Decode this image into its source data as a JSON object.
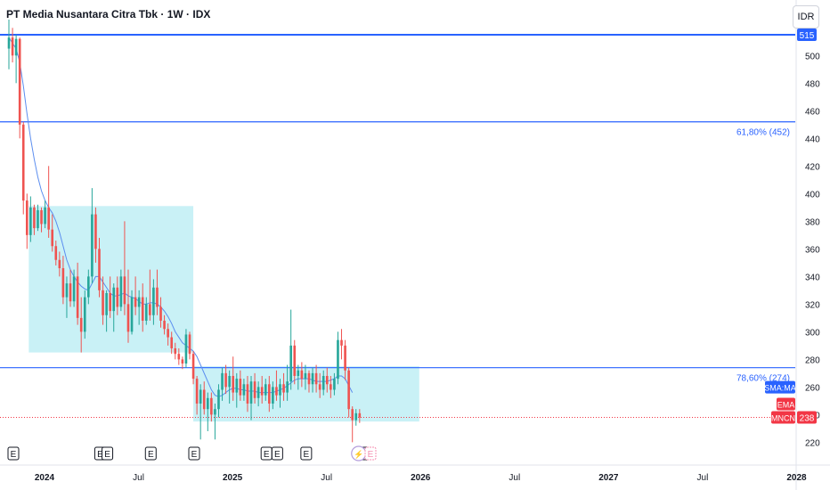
{
  "header": {
    "title": "PT Media Nusantara Citra Tbk · 1W · IDX",
    "currency": "IDR"
  },
  "chart_data": {
    "type": "candlestick",
    "ticker": "MNCN",
    "y_axis": {
      "ticks": [
        220,
        240,
        260,
        280,
        300,
        320,
        340,
        360,
        380,
        400,
        420,
        440,
        460,
        480,
        500
      ],
      "range": [
        208,
        526
      ]
    },
    "x_axis": {
      "tick_labels": [
        "2024",
        "Jul",
        "2025",
        "Jul",
        "2026",
        "Jul",
        "2027",
        "Jul",
        "2028"
      ],
      "tick_positions_week": [
        0,
        26,
        52,
        78,
        104,
        130,
        156,
        182,
        208
      ]
    },
    "horizontal_lines": [
      {
        "value": 515,
        "label": "515",
        "color": "#2962ff",
        "badge": true
      },
      {
        "value": 452,
        "label": "61,80% (452)",
        "color": "#2962ff"
      },
      {
        "value": 274,
        "label": "78,60% (274)",
        "color": "#2962ff"
      },
      {
        "value": 238,
        "label": "238",
        "color": "#f23645",
        "dotted": true
      }
    ],
    "rectangles": [
      {
        "x0_week": 5.5,
        "x1_week": 51,
        "y0": 285,
        "y1": 391,
        "color": "#b2ebf2"
      },
      {
        "x0_week": 51,
        "x1_week": 113.5,
        "y0": 235,
        "y1": 275,
        "color": "#b2ebf2"
      }
    ],
    "candles": [
      {
        "o": 505,
        "h": 526,
        "l": 490,
        "c": 513
      },
      {
        "o": 513,
        "h": 520,
        "l": 495,
        "c": 500
      },
      {
        "o": 500,
        "h": 515,
        "l": 480,
        "c": 512
      },
      {
        "o": 512,
        "h": 513,
        "l": 440,
        "c": 450
      },
      {
        "o": 450,
        "h": 452,
        "l": 385,
        "c": 395
      },
      {
        "o": 395,
        "h": 400,
        "l": 360,
        "c": 370
      },
      {
        "o": 370,
        "h": 398,
        "l": 365,
        "c": 390
      },
      {
        "o": 390,
        "h": 392,
        "l": 370,
        "c": 375
      },
      {
        "o": 375,
        "h": 392,
        "l": 373,
        "c": 388
      },
      {
        "o": 388,
        "h": 390,
        "l": 372,
        "c": 378
      },
      {
        "o": 378,
        "h": 395,
        "l": 375,
        "c": 390
      },
      {
        "o": 390,
        "h": 420,
        "l": 368,
        "c": 374
      },
      {
        "o": 374,
        "h": 385,
        "l": 358,
        "c": 362
      },
      {
        "o": 362,
        "h": 366,
        "l": 348,
        "c": 352
      },
      {
        "o": 352,
        "h": 358,
        "l": 340,
        "c": 346
      },
      {
        "o": 346,
        "h": 355,
        "l": 320,
        "c": 325
      },
      {
        "o": 325,
        "h": 340,
        "l": 310,
        "c": 335
      },
      {
        "o": 335,
        "h": 345,
        "l": 318,
        "c": 322
      },
      {
        "o": 322,
        "h": 345,
        "l": 318,
        "c": 340
      },
      {
        "o": 340,
        "h": 350,
        "l": 305,
        "c": 310
      },
      {
        "o": 310,
        "h": 325,
        "l": 285,
        "c": 300
      },
      {
        "o": 300,
        "h": 330,
        "l": 295,
        "c": 325
      },
      {
        "o": 325,
        "h": 345,
        "l": 320,
        "c": 340
      },
      {
        "o": 340,
        "h": 404,
        "l": 335,
        "c": 385
      },
      {
        "o": 385,
        "h": 390,
        "l": 350,
        "c": 360
      },
      {
        "o": 360,
        "h": 368,
        "l": 325,
        "c": 330
      },
      {
        "o": 330,
        "h": 340,
        "l": 305,
        "c": 312
      },
      {
        "o": 312,
        "h": 330,
        "l": 300,
        "c": 328
      },
      {
        "o": 328,
        "h": 340,
        "l": 310,
        "c": 315
      },
      {
        "o": 315,
        "h": 335,
        "l": 300,
        "c": 332
      },
      {
        "o": 332,
        "h": 340,
        "l": 312,
        "c": 318
      },
      {
        "o": 318,
        "h": 345,
        "l": 315,
        "c": 340
      },
      {
        "o": 340,
        "h": 380,
        "l": 312,
        "c": 320
      },
      {
        "o": 320,
        "h": 345,
        "l": 292,
        "c": 300
      },
      {
        "o": 300,
        "h": 330,
        "l": 298,
        "c": 325
      },
      {
        "o": 325,
        "h": 340,
        "l": 312,
        "c": 318
      },
      {
        "o": 318,
        "h": 330,
        "l": 305,
        "c": 325
      },
      {
        "o": 325,
        "h": 335,
        "l": 300,
        "c": 308
      },
      {
        "o": 308,
        "h": 325,
        "l": 305,
        "c": 320
      },
      {
        "o": 320,
        "h": 345,
        "l": 308,
        "c": 312
      },
      {
        "o": 312,
        "h": 338,
        "l": 305,
        "c": 332
      },
      {
        "o": 332,
        "h": 345,
        "l": 312,
        "c": 318
      },
      {
        "o": 318,
        "h": 325,
        "l": 303,
        "c": 308
      },
      {
        "o": 308,
        "h": 312,
        "l": 298,
        "c": 302
      },
      {
        "o": 302,
        "h": 306,
        "l": 290,
        "c": 296
      },
      {
        "o": 296,
        "h": 300,
        "l": 284,
        "c": 288
      },
      {
        "o": 288,
        "h": 292,
        "l": 280,
        "c": 284
      },
      {
        "o": 284,
        "h": 288,
        "l": 276,
        "c": 280
      },
      {
        "o": 280,
        "h": 282,
        "l": 273,
        "c": 277
      },
      {
        "o": 277,
        "h": 302,
        "l": 274,
        "c": 298
      },
      {
        "o": 298,
        "h": 300,
        "l": 280,
        "c": 284
      },
      {
        "o": 284,
        "h": 286,
        "l": 262,
        "c": 266
      },
      {
        "o": 266,
        "h": 268,
        "l": 240,
        "c": 248
      },
      {
        "o": 248,
        "h": 262,
        "l": 222,
        "c": 258
      },
      {
        "o": 258,
        "h": 264,
        "l": 240,
        "c": 244
      },
      {
        "o": 244,
        "h": 256,
        "l": 228,
        "c": 252
      },
      {
        "o": 252,
        "h": 256,
        "l": 235,
        "c": 240
      },
      {
        "o": 240,
        "h": 248,
        "l": 222,
        "c": 244
      },
      {
        "o": 244,
        "h": 262,
        "l": 238,
        "c": 258
      },
      {
        "o": 258,
        "h": 274,
        "l": 250,
        "c": 270
      },
      {
        "o": 270,
        "h": 276,
        "l": 255,
        "c": 260
      },
      {
        "o": 260,
        "h": 272,
        "l": 248,
        "c": 268
      },
      {
        "o": 268,
        "h": 282,
        "l": 250,
        "c": 256
      },
      {
        "o": 256,
        "h": 270,
        "l": 245,
        "c": 266
      },
      {
        "o": 266,
        "h": 272,
        "l": 250,
        "c": 254
      },
      {
        "o": 254,
        "h": 266,
        "l": 250,
        "c": 262
      },
      {
        "o": 262,
        "h": 268,
        "l": 242,
        "c": 248
      },
      {
        "o": 248,
        "h": 268,
        "l": 236,
        "c": 264
      },
      {
        "o": 264,
        "h": 270,
        "l": 248,
        "c": 252
      },
      {
        "o": 252,
        "h": 264,
        "l": 246,
        "c": 260
      },
      {
        "o": 260,
        "h": 268,
        "l": 248,
        "c": 254
      },
      {
        "o": 254,
        "h": 266,
        "l": 250,
        "c": 262
      },
      {
        "o": 262,
        "h": 268,
        "l": 242,
        "c": 248
      },
      {
        "o": 248,
        "h": 264,
        "l": 244,
        "c": 260
      },
      {
        "o": 260,
        "h": 272,
        "l": 250,
        "c": 254
      },
      {
        "o": 254,
        "h": 266,
        "l": 245,
        "c": 262
      },
      {
        "o": 262,
        "h": 270,
        "l": 250,
        "c": 256
      },
      {
        "o": 256,
        "h": 276,
        "l": 250,
        "c": 264
      },
      {
        "o": 264,
        "h": 316,
        "l": 258,
        "c": 290
      },
      {
        "o": 290,
        "h": 294,
        "l": 262,
        "c": 268
      },
      {
        "o": 268,
        "h": 276,
        "l": 258,
        "c": 272
      },
      {
        "o": 272,
        "h": 278,
        "l": 260,
        "c": 266
      },
      {
        "o": 266,
        "h": 276,
        "l": 258,
        "c": 270
      },
      {
        "o": 270,
        "h": 272,
        "l": 256,
        "c": 262
      },
      {
        "o": 262,
        "h": 274,
        "l": 256,
        "c": 270
      },
      {
        "o": 270,
        "h": 276,
        "l": 256,
        "c": 262
      },
      {
        "o": 262,
        "h": 270,
        "l": 252,
        "c": 258
      },
      {
        "o": 258,
        "h": 272,
        "l": 254,
        "c": 268
      },
      {
        "o": 268,
        "h": 274,
        "l": 256,
        "c": 262
      },
      {
        "o": 262,
        "h": 268,
        "l": 252,
        "c": 258
      },
      {
        "o": 258,
        "h": 270,
        "l": 254,
        "c": 266
      },
      {
        "o": 266,
        "h": 300,
        "l": 262,
        "c": 294
      },
      {
        "o": 294,
        "h": 302,
        "l": 280,
        "c": 290
      },
      {
        "o": 290,
        "h": 294,
        "l": 265,
        "c": 272
      },
      {
        "o": 272,
        "h": 274,
        "l": 238,
        "c": 244
      },
      {
        "o": 244,
        "h": 246,
        "l": 220,
        "c": 236
      },
      {
        "o": 236,
        "h": 244,
        "l": 232,
        "c": 241
      },
      {
        "o": 241,
        "h": 244,
        "l": 234,
        "c": 238
      }
    ],
    "moving_average": [
      [
        0,
        513
      ],
      [
        2,
        505
      ],
      [
        3,
        495
      ],
      [
        4,
        478
      ],
      [
        5,
        458
      ],
      [
        6,
        440
      ],
      [
        7,
        425
      ],
      [
        8,
        412
      ],
      [
        9,
        402
      ],
      [
        10,
        395
      ],
      [
        11,
        390
      ],
      [
        12,
        386
      ],
      [
        13,
        380
      ],
      [
        14,
        372
      ],
      [
        15,
        362
      ],
      [
        16,
        352
      ],
      [
        17,
        345
      ],
      [
        18,
        340
      ],
      [
        19,
        336
      ],
      [
        20,
        333
      ],
      [
        21,
        331
      ],
      [
        22,
        330
      ],
      [
        23,
        335
      ],
      [
        24,
        340
      ],
      [
        25,
        340
      ],
      [
        26,
        336
      ],
      [
        27,
        332
      ],
      [
        28,
        328
      ],
      [
        29,
        326
      ],
      [
        30,
        326
      ],
      [
        31,
        327
      ],
      [
        32,
        328
      ],
      [
        33,
        326
      ],
      [
        34,
        325
      ],
      [
        35,
        324
      ],
      [
        36,
        322
      ],
      [
        37,
        320
      ],
      [
        38,
        320
      ],
      [
        39,
        321
      ],
      [
        40,
        321
      ],
      [
        41,
        320
      ],
      [
        42,
        318
      ],
      [
        43,
        315
      ],
      [
        44,
        311
      ],
      [
        45,
        306
      ],
      [
        46,
        300
      ],
      [
        47,
        296
      ],
      [
        48,
        292
      ],
      [
        49,
        290
      ],
      [
        50,
        288
      ],
      [
        51,
        286
      ],
      [
        52,
        282
      ],
      [
        53,
        276
      ],
      [
        54,
        270
      ],
      [
        55,
        264
      ],
      [
        56,
        258
      ],
      [
        57,
        254
      ],
      [
        58,
        253
      ],
      [
        59,
        254
      ],
      [
        60,
        256
      ],
      [
        61,
        258
      ],
      [
        62,
        259
      ],
      [
        63,
        259
      ],
      [
        64,
        258
      ],
      [
        65,
        258
      ],
      [
        66,
        257
      ],
      [
        67,
        257
      ],
      [
        68,
        257
      ],
      [
        69,
        256
      ],
      [
        70,
        256
      ],
      [
        71,
        256
      ],
      [
        72,
        256
      ],
      [
        73,
        256
      ],
      [
        74,
        257
      ],
      [
        75,
        258
      ],
      [
        76,
        259
      ],
      [
        77,
        261
      ],
      [
        78,
        263
      ],
      [
        79,
        265
      ],
      [
        80,
        266
      ],
      [
        81,
        266
      ],
      [
        82,
        266
      ],
      [
        83,
        266
      ],
      [
        84,
        265
      ],
      [
        85,
        264
      ],
      [
        86,
        264
      ],
      [
        87,
        264
      ],
      [
        88,
        264
      ],
      [
        89,
        265
      ],
      [
        90,
        266
      ],
      [
        91,
        268
      ],
      [
        92,
        268
      ],
      [
        93,
        266
      ],
      [
        94,
        261
      ],
      [
        95,
        256
      ]
    ],
    "sma_label": "SMA:MA",
    "ema_label": "EMA",
    "last_value": "238",
    "earnings_markers_week": [
      0,
      24,
      26,
      38,
      50,
      70,
      73,
      81,
      97
    ]
  }
}
